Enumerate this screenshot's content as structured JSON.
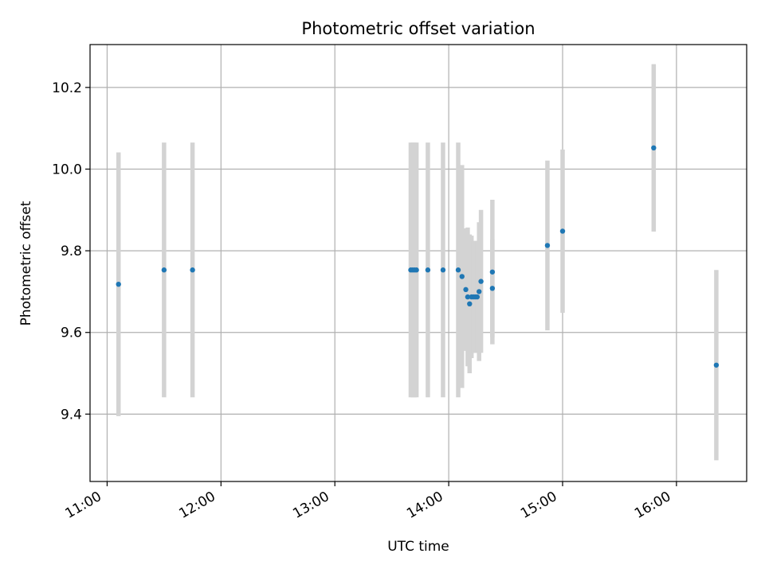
{
  "chart_data": {
    "type": "scatter",
    "title": "Photometric offset variation",
    "xlabel": "UTC time",
    "ylabel": "Photometric offset",
    "grid": true,
    "xlim": [
      "10:51",
      "16:37"
    ],
    "ylim": [
      9.235,
      10.305
    ],
    "x_ticks": [
      "11:00",
      "12:00",
      "13:00",
      "14:00",
      "15:00",
      "16:00"
    ],
    "y_ticks": [
      9.4,
      9.6,
      9.8,
      10.0,
      10.2
    ],
    "y_tick_labels": [
      "9.4",
      "9.6",
      "9.8",
      "10.0",
      "10.2"
    ],
    "point_color": "#1f77b4",
    "errorbar_color": "#d3d3d3",
    "series": [
      {
        "points": [
          {
            "x": "11:06",
            "y": 9.718,
            "err": 0.323
          },
          {
            "x": "11:30",
            "y": 9.753,
            "err": 0.312
          },
          {
            "x": "11:45",
            "y": 9.753,
            "err": 0.312
          },
          {
            "x": "13:40",
            "y": 9.753,
            "err": 0.312
          },
          {
            "x": "13:41",
            "y": 9.753,
            "err": 0.312
          },
          {
            "x": "13:42",
            "y": 9.753,
            "err": 0.312
          },
          {
            "x": "13:43",
            "y": 9.753,
            "err": 0.312
          },
          {
            "x": "13:49",
            "y": 9.753,
            "err": 0.312
          },
          {
            "x": "13:57",
            "y": 9.753,
            "err": 0.312
          },
          {
            "x": "14:05",
            "y": 9.753,
            "err": 0.312
          },
          {
            "x": "14:07",
            "y": 9.737,
            "err": 0.273
          },
          {
            "x": "14:09",
            "y": 9.705,
            "err": 0.15
          },
          {
            "x": "14:10",
            "y": 9.687,
            "err": 0.17
          },
          {
            "x": "14:11",
            "y": 9.67,
            "err": 0.17
          },
          {
            "x": "14:12",
            "y": 9.687,
            "err": 0.15
          },
          {
            "x": "14:13",
            "y": 9.687,
            "err": 0.137
          },
          {
            "x": "14:14",
            "y": 9.687,
            "err": 0.137
          },
          {
            "x": "14:15",
            "y": 9.687,
            "err": 0.137
          },
          {
            "x": "14:16",
            "y": 9.7,
            "err": 0.17
          },
          {
            "x": "14:17",
            "y": 9.725,
            "err": 0.175
          },
          {
            "x": "14:23",
            "y": 9.748,
            "err": 0.177
          },
          {
            "x": "14:23",
            "y": 9.708,
            "err": 0.12
          },
          {
            "x": "14:52",
            "y": 9.813,
            "err": 0.208
          },
          {
            "x": "15:00",
            "y": 9.848,
            "err": 0.2
          },
          {
            "x": "15:48",
            "y": 10.052,
            "err": 0.205
          },
          {
            "x": "16:21",
            "y": 9.52,
            "err": 0.233
          }
        ]
      }
    ]
  }
}
